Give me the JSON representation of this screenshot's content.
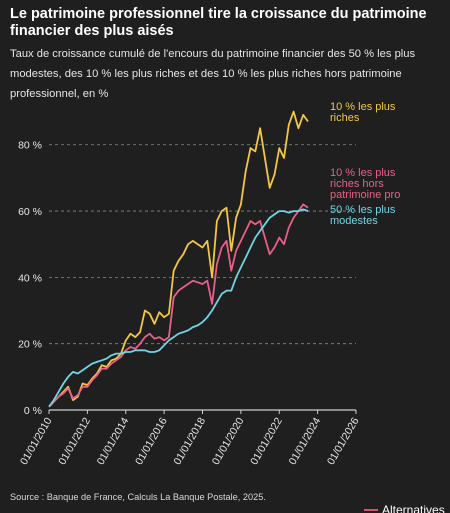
{
  "title": "Le patrimoine professionnel tire la croissance du patrimoine financier des plus aisés",
  "subtitle": "Taux de croissance cumulé de l'encours du patrimoine financier des 50 % les plus modestes, des 10 % les plus riches et des 10 % les plus riches hors patrimoine professionnel, en %",
  "source": "Source : Banque de France, Calculs La Banque Postale, 2025.",
  "brand": "Alternatives",
  "colors": {
    "top10": "#f2c744",
    "top10_hors_pro": "#e8608a",
    "bottom50": "#6fd6e3",
    "background": "#1f1f1f",
    "grid": "#8a8a8a",
    "brand_accent": "#e34b6d"
  },
  "chart_data": {
    "type": "line",
    "x_ticks": [
      "01/01/2010",
      "01/01/2012",
      "01/01/2014",
      "01/01/2016",
      "01/01/2018",
      "01/01/2020",
      "01/01/2022",
      "01/01/2024",
      "01/01/2026"
    ],
    "xlim": [
      "2010-01-01",
      "2026-01-01"
    ],
    "y_ticks": [
      "0 %",
      "20 %",
      "40 %",
      "60 %",
      "80 %"
    ],
    "ylim": [
      0,
      95
    ],
    "grid": "horizontal dashed",
    "series": [
      {
        "name": "10 % les plus riches",
        "label_lines": [
          "10 % les plus",
          "riches"
        ],
        "color_key": "top10",
        "points": [
          [
            2010.0,
            1
          ],
          [
            2010.25,
            2.5
          ],
          [
            2010.5,
            4
          ],
          [
            2010.75,
            5.5
          ],
          [
            2011.0,
            7
          ],
          [
            2011.25,
            3
          ],
          [
            2011.5,
            4
          ],
          [
            2011.75,
            8
          ],
          [
            2012.0,
            7.5
          ],
          [
            2012.25,
            9.5
          ],
          [
            2012.5,
            11
          ],
          [
            2012.75,
            13.5
          ],
          [
            2013.0,
            13
          ],
          [
            2013.25,
            15
          ],
          [
            2013.5,
            15.5
          ],
          [
            2013.75,
            17
          ],
          [
            2014.0,
            21
          ],
          [
            2014.25,
            23
          ],
          [
            2014.5,
            22
          ],
          [
            2014.75,
            23.5
          ],
          [
            2015.0,
            30
          ],
          [
            2015.25,
            29
          ],
          [
            2015.5,
            26
          ],
          [
            2015.75,
            29.5
          ],
          [
            2016.0,
            28
          ],
          [
            2016.25,
            29
          ],
          [
            2016.5,
            42
          ],
          [
            2016.75,
            45
          ],
          [
            2017.0,
            47
          ],
          [
            2017.25,
            50
          ],
          [
            2017.5,
            51
          ],
          [
            2017.75,
            50
          ],
          [
            2018.0,
            49
          ],
          [
            2018.25,
            51
          ],
          [
            2018.5,
            40
          ],
          [
            2018.75,
            57
          ],
          [
            2019.0,
            60
          ],
          [
            2019.25,
            61
          ],
          [
            2019.5,
            48
          ],
          [
            2019.75,
            58
          ],
          [
            2020.0,
            62
          ],
          [
            2020.25,
            72
          ],
          [
            2020.5,
            79
          ],
          [
            2020.75,
            78
          ],
          [
            2021.0,
            85
          ],
          [
            2021.25,
            76
          ],
          [
            2021.5,
            67
          ],
          [
            2021.75,
            71
          ],
          [
            2022.0,
            79
          ],
          [
            2022.25,
            76
          ],
          [
            2022.5,
            86
          ],
          [
            2022.75,
            90
          ],
          [
            2023.0,
            85
          ],
          [
            2023.25,
            89
          ],
          [
            2023.5,
            87
          ]
        ]
      },
      {
        "name": "10 % les plus riches hors patrimoine pro",
        "label_lines": [
          "10 % les plus",
          "riches hors",
          "patrimoine pro"
        ],
        "color_key": "top10_hors_pro",
        "points": [
          [
            2010.0,
            1
          ],
          [
            2010.25,
            2.5
          ],
          [
            2010.5,
            4
          ],
          [
            2010.75,
            5
          ],
          [
            2011.0,
            6.5
          ],
          [
            2011.25,
            3.5
          ],
          [
            2011.5,
            4.5
          ],
          [
            2011.75,
            7
          ],
          [
            2012.0,
            7
          ],
          [
            2012.25,
            9
          ],
          [
            2012.5,
            10.5
          ],
          [
            2012.75,
            12.5
          ],
          [
            2013.0,
            12.5
          ],
          [
            2013.25,
            14
          ],
          [
            2013.5,
            15
          ],
          [
            2013.75,
            16
          ],
          [
            2014.0,
            18
          ],
          [
            2014.25,
            19
          ],
          [
            2014.5,
            18.5
          ],
          [
            2014.75,
            20
          ],
          [
            2015.0,
            22
          ],
          [
            2015.25,
            23
          ],
          [
            2015.5,
            21.5
          ],
          [
            2015.75,
            22
          ],
          [
            2016.0,
            21
          ],
          [
            2016.25,
            22
          ],
          [
            2016.5,
            34
          ],
          [
            2016.75,
            36
          ],
          [
            2017.0,
            37
          ],
          [
            2017.25,
            38
          ],
          [
            2017.5,
            39
          ],
          [
            2017.75,
            38.5
          ],
          [
            2018.0,
            38
          ],
          [
            2018.25,
            39
          ],
          [
            2018.5,
            32
          ],
          [
            2018.75,
            44
          ],
          [
            2019.0,
            49
          ],
          [
            2019.25,
            51
          ],
          [
            2019.5,
            42
          ],
          [
            2019.75,
            48
          ],
          [
            2020.0,
            51
          ],
          [
            2020.25,
            54
          ],
          [
            2020.5,
            57
          ],
          [
            2020.75,
            56
          ],
          [
            2021.0,
            57
          ],
          [
            2021.25,
            52
          ],
          [
            2021.5,
            47
          ],
          [
            2021.75,
            49
          ],
          [
            2022.0,
            52
          ],
          [
            2022.25,
            50
          ],
          [
            2022.5,
            55
          ],
          [
            2022.75,
            58
          ],
          [
            2023.0,
            60
          ],
          [
            2023.25,
            62
          ],
          [
            2023.5,
            61
          ]
        ]
      },
      {
        "name": "50 % les plus modestes",
        "label_lines": [
          "50 % les plus",
          "modestes"
        ],
        "color_key": "bottom50",
        "points": [
          [
            2010.0,
            1
          ],
          [
            2010.25,
            3
          ],
          [
            2010.5,
            5.5
          ],
          [
            2010.75,
            8
          ],
          [
            2011.0,
            10
          ],
          [
            2011.25,
            11.5
          ],
          [
            2011.5,
            11
          ],
          [
            2011.75,
            12
          ],
          [
            2012.0,
            13
          ],
          [
            2012.25,
            14
          ],
          [
            2012.5,
            14.5
          ],
          [
            2012.75,
            15
          ],
          [
            2013.0,
            15.5
          ],
          [
            2013.25,
            16.5
          ],
          [
            2013.5,
            17
          ],
          [
            2013.75,
            17
          ],
          [
            2014.0,
            17.5
          ],
          [
            2014.25,
            17.5
          ],
          [
            2014.5,
            18
          ],
          [
            2014.75,
            18
          ],
          [
            2015.0,
            18
          ],
          [
            2015.25,
            17.5
          ],
          [
            2015.5,
            17.5
          ],
          [
            2015.75,
            18
          ],
          [
            2016.0,
            19.5
          ],
          [
            2016.25,
            21
          ],
          [
            2016.5,
            22
          ],
          [
            2016.75,
            23
          ],
          [
            2017.0,
            23.5
          ],
          [
            2017.25,
            24
          ],
          [
            2017.5,
            25
          ],
          [
            2017.75,
            25.5
          ],
          [
            2018.0,
            26.5
          ],
          [
            2018.25,
            28
          ],
          [
            2018.5,
            30
          ],
          [
            2018.75,
            32.5
          ],
          [
            2019.0,
            35
          ],
          [
            2019.25,
            36
          ],
          [
            2019.5,
            36
          ],
          [
            2019.75,
            40
          ],
          [
            2020.0,
            43
          ],
          [
            2020.25,
            46
          ],
          [
            2020.5,
            49
          ],
          [
            2020.75,
            52
          ],
          [
            2021.0,
            54
          ],
          [
            2021.25,
            56
          ],
          [
            2021.5,
            58
          ],
          [
            2021.75,
            59
          ],
          [
            2022.0,
            60
          ],
          [
            2022.25,
            60
          ],
          [
            2022.5,
            59.5
          ],
          [
            2022.75,
            60
          ],
          [
            2023.0,
            60
          ],
          [
            2023.25,
            60.5
          ],
          [
            2023.5,
            60
          ]
        ]
      }
    ]
  }
}
